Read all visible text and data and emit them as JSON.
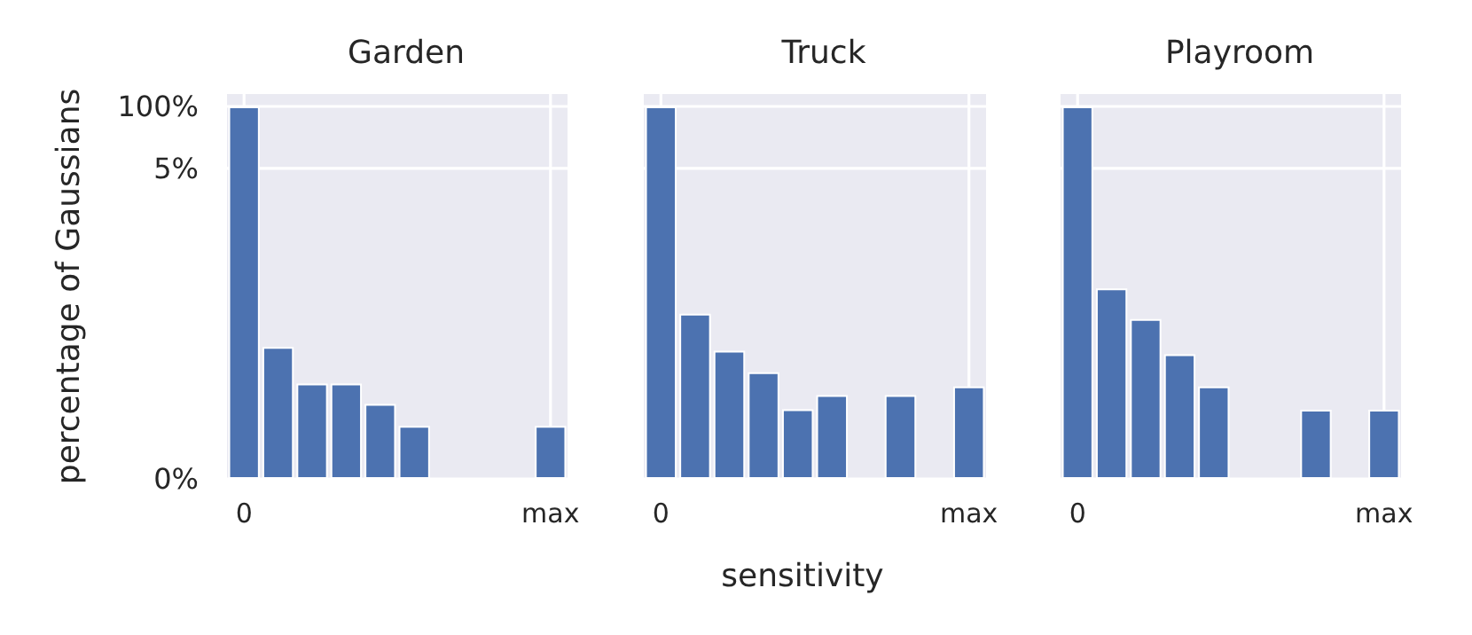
{
  "chart_data": [
    {
      "type": "bar",
      "title": "Garden",
      "ylabel": "percentage of Gaussians",
      "categories": [
        "0",
        null,
        null,
        null,
        null,
        null,
        null,
        null,
        null,
        "max"
      ],
      "log": true,
      "ylim": [
        0,
        100
      ],
      "yticks": [
        {
          "value": 0,
          "label": "0%"
        },
        {
          "value": 5,
          "label": "5%"
        },
        {
          "value": 100,
          "label": "100%"
        }
      ],
      "grid": true,
      "series": [
        {
          "color": "#4c72b0",
          "values": [
            100,
            0.00088,
            0.00015,
            0.00015,
            5.5e-05,
            1.8e-05,
            0,
            0,
            0,
            1.8e-05
          ]
        }
      ]
    },
    {
      "type": "bar",
      "title": "Truck",
      "xlabel": "sensitivity",
      "categories": [
        "0",
        null,
        null,
        null,
        null,
        null,
        null,
        null,
        null,
        "max"
      ],
      "log": true,
      "ylim": [
        0,
        100
      ],
      "grid": true,
      "tick_labels": "x",
      "series": [
        {
          "color": "#4c72b0",
          "values": [
            100,
            0.0044,
            0.00074,
            0.00026,
            4.2e-05,
            8.5e-05,
            0,
            8.5e-05,
            0,
            0.00013
          ]
        }
      ]
    },
    {
      "type": "bar",
      "title": "Playroom",
      "categories": [
        "0",
        null,
        null,
        null,
        null,
        null,
        null,
        null,
        null,
        "max"
      ],
      "log": true,
      "ylim": [
        0,
        100
      ],
      "grid": true,
      "tick_labels": "x",
      "series": [
        {
          "color": "#4c72b0",
          "values": [
            100,
            0.015,
            0.0034,
            0.00062,
            0.00013,
            0,
            0,
            4.1e-05,
            0,
            4.1e-05
          ]
        }
      ]
    }
  ]
}
